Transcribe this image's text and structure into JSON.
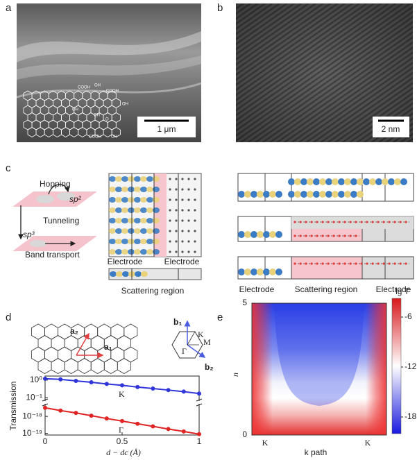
{
  "panel_a": {
    "label": "a",
    "scale_bar": "1 μm",
    "chem_labels": [
      "COOH",
      "OH",
      "COOH",
      "OH",
      "OH",
      "OH",
      "O",
      "COOH",
      "OH"
    ]
  },
  "panel_b": {
    "label": "b",
    "scale_bar": "2 nm"
  },
  "panel_c": {
    "label": "c",
    "hopping": "Hopping",
    "sp2": "sp²",
    "tunneling": "Tunneling",
    "sp3": "sp³",
    "band_transport": "Band transport",
    "middle_electrodes": [
      "Electrode",
      "Electrode"
    ],
    "middle_region": "Scattering region",
    "right_labels": [
      "Electrode",
      "Scattering region",
      "Electrode"
    ]
  },
  "panel_d": {
    "label": "d",
    "lattice_vectors": [
      "a₂",
      "a₁"
    ],
    "reciprocal_vectors": [
      "b₁",
      "b₂"
    ],
    "bz_points": [
      "K",
      "M",
      "Γ"
    ],
    "chart": {
      "type": "line",
      "ylabel": "Transmission",
      "xlabel": "d − dc (Å)",
      "log_scale": true,
      "x": [
        0,
        0.1,
        0.2,
        0.3,
        0.4,
        0.5,
        0.6,
        0.7,
        0.8,
        0.9,
        1
      ],
      "xlim": [
        0,
        1
      ],
      "xticks": [
        0,
        0.5,
        1
      ],
      "ylim_upper": [
        0.07,
        1.7
      ],
      "ylim_lower": [
        8e-20,
        5e-18
      ],
      "yticks": [
        {
          "value": 1,
          "label": "10⁰"
        },
        {
          "value": 0.1,
          "label": "10⁻¹"
        },
        {
          "value": 1e-18,
          "label": "10⁻¹⁸"
        },
        {
          "value": 1e-19,
          "label": "10⁻¹⁹"
        }
      ],
      "series": [
        {
          "name": "K",
          "color": "#2f35d8",
          "axis": "upper",
          "values": [
            1.2,
            1.1,
            0.9,
            0.75,
            0.6,
            0.5,
            0.4,
            0.33,
            0.27,
            0.22,
            0.17
          ]
        },
        {
          "name": "Γ",
          "color": "#e02424",
          "axis": "lower",
          "values": [
            3.2e-18,
            2.2e-18,
            1.6e-18,
            1.1e-18,
            7.5e-19,
            5.3e-19,
            3.7e-19,
            2.6e-19,
            1.8e-19,
            1.3e-19,
            9e-20
          ]
        }
      ]
    }
  },
  "panel_e": {
    "label": "e",
    "chart": {
      "type": "heatmap",
      "x_labels": [
        "K",
        "K"
      ],
      "xlabel": "k path",
      "ylabel": "n",
      "ylim": [
        0,
        5
      ],
      "yticks": [
        0,
        5
      ],
      "colorbar": {
        "label": "lg T",
        "lim": [
          -20,
          -3.75
        ],
        "ticks": [
          -6,
          -12,
          -18
        ]
      }
    }
  }
}
